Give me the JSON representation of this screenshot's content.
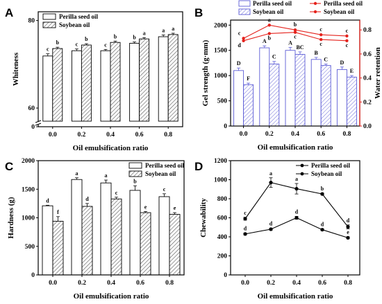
{
  "colors": {
    "axis": "#000000",
    "bar_fill": "#ffffff",
    "soy_bar_blue": "#5b5bd6",
    "retention_red": "#e5221c"
  },
  "chart_data": [
    {
      "id": "A",
      "panel_label": "A",
      "type": "bar",
      "categories": [
        "0.0",
        "0.2",
        "0.4",
        "0.6",
        "0.8"
      ],
      "xlabel": "Oil emulsification ratio",
      "ylabel": "Whiteness",
      "ylim": [
        57,
        82
      ],
      "axis_break_bottom": "0",
      "yticks": [
        "60",
        "80"
      ],
      "legend": [
        "Perilla seed oil",
        "Soybean oil"
      ],
      "legend_position": "top-left",
      "series": [
        {
          "name": "Perilla seed oil",
          "pattern": "solid",
          "values": [
            71.9,
            73.1,
            73.1,
            74.8,
            76.3
          ],
          "errors": [
            0.5,
            0.4,
            0.3,
            0.3,
            0.4
          ],
          "labels": [
            "c",
            "c",
            "c",
            "b",
            "a"
          ]
        },
        {
          "name": "Soybean oil",
          "pattern": "hatch",
          "values": [
            73.6,
            74.4,
            75.0,
            75.8,
            76.8
          ],
          "errors": [
            0.3,
            0.3,
            0.3,
            0.3,
            0.3
          ],
          "labels": [
            "b",
            "b",
            "b",
            "a",
            "a"
          ]
        }
      ]
    },
    {
      "id": "B",
      "panel_label": "B",
      "type": "bar",
      "categories": [
        "0.0",
        "0.2",
        "0.4",
        "0.6",
        "0.8"
      ],
      "xlabel": "Oil emulsification ratio",
      "ylabel": "Gel strength (g·mm)",
      "ylabel_right": "Water retention",
      "ylim": [
        0,
        2100
      ],
      "yticks": [
        "0",
        "500",
        "1000",
        "1500",
        "2000"
      ],
      "ylim_right": [
        0,
        0.882
      ],
      "yticks_right": [
        "0.0",
        "0.2",
        "0.4",
        "0.6",
        "0.8"
      ],
      "legend": [
        "Perilla seed oil",
        "Soybean oil",
        "Perilla seed oil",
        "Soybean oil"
      ],
      "legend_position": "top",
      "series": [
        {
          "name": "Perilla seed oil",
          "kind": "bar",
          "pattern": "solid",
          "values": [
            1100,
            1550,
            1500,
            1320,
            1120
          ],
          "errors": [
            50,
            40,
            60,
            40,
            50
          ],
          "labels": [
            "D",
            "A",
            "A",
            "B",
            "D"
          ]
        },
        {
          "name": "Soybean oil",
          "kind": "bar",
          "pattern": "hatch",
          "values": [
            820,
            1230,
            1420,
            1200,
            970
          ],
          "errors": [
            30,
            50,
            50,
            30,
            30
          ],
          "labels": [
            "F",
            "C",
            "BC",
            "C",
            "E"
          ]
        },
        {
          "name": "Perilla seed oil",
          "kind": "line",
          "axis": "right",
          "values": [
            0.73,
            0.84,
            0.8,
            0.76,
            0.75
          ],
          "errors": [
            0.01,
            0.01,
            0.01,
            0.01,
            0.01
          ],
          "labels": [
            "c",
            "a",
            "b",
            "c",
            "c"
          ]
        },
        {
          "name": "Soybean oil",
          "kind": "line",
          "axis": "right",
          "values": [
            0.71,
            0.77,
            0.78,
            0.72,
            0.71
          ],
          "errors": [
            0.01,
            0.01,
            0.01,
            0.01,
            0.01
          ],
          "labels": [
            "d",
            "b",
            "c",
            "c",
            "c"
          ]
        }
      ]
    },
    {
      "id": "C",
      "panel_label": "C",
      "type": "bar",
      "categories": [
        "0.0",
        "0.2",
        "0.4",
        "0.6",
        "0.8"
      ],
      "xlabel": "Oil emulsification ratio",
      "ylabel": "Hardness (g)",
      "ylim": [
        0,
        2000
      ],
      "yticks": [
        "0",
        "500",
        "1000",
        "1500",
        "2000"
      ],
      "legend": [
        "Perilla seed oil",
        "Soybean oil"
      ],
      "legend_position": "top-right",
      "series": [
        {
          "name": "Perilla seed oil",
          "pattern": "solid",
          "values": [
            1210,
            1670,
            1610,
            1480,
            1370
          ],
          "errors": [
            10,
            30,
            50,
            80,
            50
          ],
          "labels": [
            "d",
            "a",
            "a",
            "b",
            "c"
          ]
        },
        {
          "name": "Soybean oil",
          "pattern": "hatch",
          "values": [
            940,
            1200,
            1330,
            1090,
            1060
          ],
          "errors": [
            80,
            50,
            30,
            20,
            30
          ],
          "labels": [
            "f",
            "d",
            "c",
            "e",
            "e"
          ]
        }
      ]
    },
    {
      "id": "D",
      "panel_label": "D",
      "type": "line",
      "x": [
        "0.0",
        "0.2",
        "0.4",
        "0.6",
        "0.8"
      ],
      "xlabel": "Oil emulsification ratio",
      "ylabel": "Chewability",
      "ylim": [
        0,
        1200
      ],
      "yticks": [
        "0",
        "200",
        "400",
        "600",
        "800",
        "1000",
        "1200"
      ],
      "legend": [
        "Perilla seed oil",
        "Soybean oil"
      ],
      "legend_position": "top-right",
      "series": [
        {
          "name": "Perilla seed oil",
          "values": [
            590,
            970,
            905,
            850,
            505
          ],
          "errors": [
            15,
            50,
            55,
            10,
            20
          ],
          "labels": [
            "c",
            "a",
            "a",
            "b",
            "d"
          ]
        },
        {
          "name": "Soybean oil",
          "values": [
            430,
            480,
            600,
            475,
            390
          ],
          "errors": [
            10,
            10,
            15,
            10,
            10
          ],
          "labels": [
            "d",
            "d",
            "d",
            "d",
            "e"
          ]
        }
      ]
    }
  ]
}
